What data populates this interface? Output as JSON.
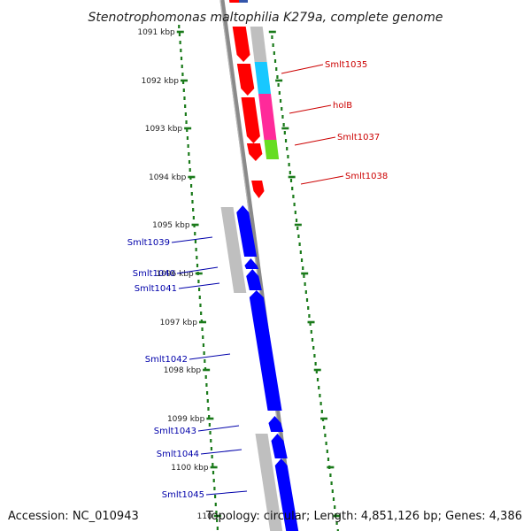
{
  "header": {
    "title": "Stenotrophomonas maltophilia K279a, complete genome"
  },
  "footer": {
    "accession": "Accession: NC_010943",
    "topology": "Topology: circular; Length: 4,851,126 bp; Genes: 4,386"
  },
  "colors": {
    "forward_label": "#cc0000",
    "reverse_label": "#0000aa",
    "tick": "#1a7a1a",
    "pseudo_gray": "#bfbfbf",
    "spine": "#8a8a8a"
  },
  "scale": {
    "unit": "kbp",
    "labels": [
      "1091 kbp",
      "1092 kbp",
      "1093 kbp",
      "1094 kbp",
      "1095 kbp",
      "1096 kbp",
      "1097 kbp",
      "1098 kbp",
      "1099 kbp",
      "1100 kbp",
      "110"
    ]
  },
  "genes": {
    "forward": [
      {
        "label": "Smlt1035",
        "color": "#ff0000",
        "cog_color": "#18c8ff"
      },
      {
        "label": "holB",
        "color": "#ff0000",
        "cog_color": "#ff2a9a"
      },
      {
        "label": "Smlt1037",
        "color": "#ff0000",
        "cog_color": "#66dd22"
      },
      {
        "label": "Smlt1038",
        "color": "#ff0000"
      }
    ],
    "reverse": [
      {
        "label": "Smlt1039",
        "color": "#0000ff"
      },
      {
        "label": "Smlt1040",
        "color": "#0000ff"
      },
      {
        "label": "Smlt1041",
        "color": "#0000ff"
      },
      {
        "label": "Smlt1042",
        "color": "#0000ff"
      },
      {
        "label": "Smlt1043",
        "color": "#0000ff"
      },
      {
        "label": "Smlt1044",
        "color": "#0000ff"
      },
      {
        "label": "Smlt1045",
        "color": "#0000ff"
      }
    ]
  }
}
